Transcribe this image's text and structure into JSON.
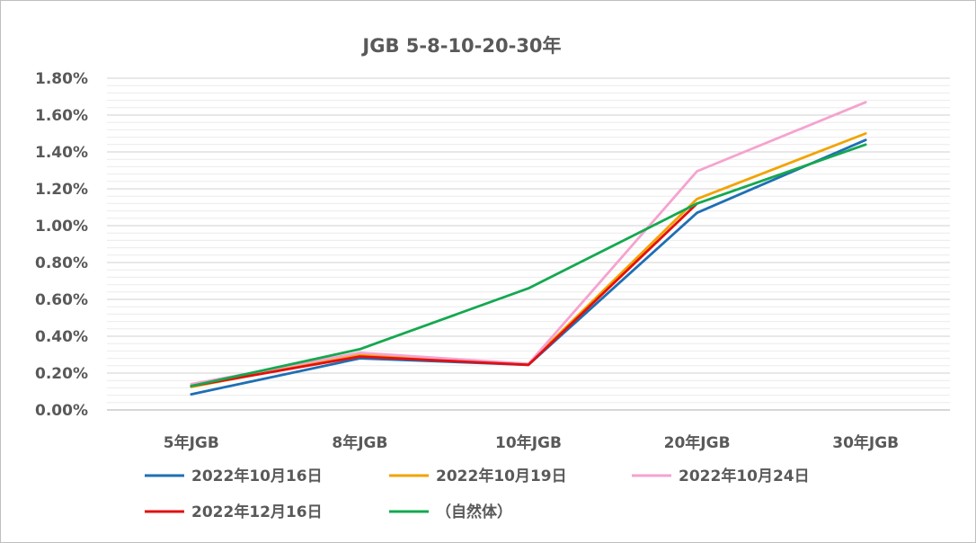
{
  "chart_data": {
    "type": "line",
    "title": "JGB 5-8-10-20-30年",
    "categories": [
      "5年JGB",
      "8年JGB",
      "10年JGB",
      "20年JGB",
      "30年JGB"
    ],
    "yticks": [
      "0.00%",
      "0.20%",
      "0.40%",
      "0.60%",
      "0.80%",
      "1.00%",
      "1.20%",
      "1.40%",
      "1.60%",
      "1.80%"
    ],
    "ylim": [
      0,
      1.8
    ],
    "y_unit": "%",
    "major_grid": true,
    "minor_grid": true,
    "legend_position": "bottom",
    "series": [
      {
        "name": "2022年10月16日",
        "color": "#1f6fb4",
        "values": [
          0.085,
          0.28,
          0.245,
          1.07,
          1.465
        ]
      },
      {
        "name": "2022年10月19日",
        "color": "#f2a300",
        "values": [
          0.125,
          0.3,
          0.25,
          1.145,
          1.5
        ]
      },
      {
        "name": "2022年10月24日",
        "color": "#f5a3cf",
        "values": [
          0.14,
          0.31,
          0.25,
          1.295,
          1.67
        ]
      },
      {
        "name": "2022年12月16日",
        "color": "#e30f0f",
        "values": [
          0.13,
          0.29,
          0.245,
          1.12,
          null
        ]
      },
      {
        "name": "（自然体）",
        "color": "#14a850",
        "values": [
          0.13,
          0.33,
          0.66,
          1.12,
          1.44
        ]
      }
    ]
  }
}
